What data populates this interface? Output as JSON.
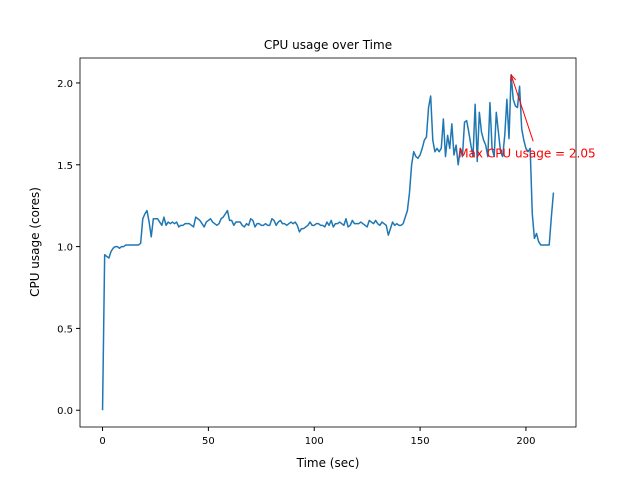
{
  "chart_data": {
    "type": "line",
    "title": "CPU usage over Time",
    "x_label": "Time (sec)",
    "y_label": "CPU usage (cores)",
    "x": [
      0,
      1,
      2,
      3,
      4,
      5,
      6,
      7,
      8,
      9,
      10,
      11,
      12,
      13,
      14,
      15,
      16,
      17,
      18,
      19,
      20,
      21,
      22,
      23,
      24,
      25,
      26,
      27,
      28,
      29,
      30,
      31,
      32,
      33,
      34,
      35,
      36,
      37,
      38,
      39,
      40,
      41,
      42,
      43,
      44,
      45,
      46,
      47,
      48,
      49,
      50,
      51,
      52,
      53,
      54,
      55,
      56,
      57,
      58,
      59,
      60,
      61,
      62,
      63,
      64,
      65,
      66,
      67,
      68,
      69,
      70,
      71,
      72,
      73,
      74,
      75,
      76,
      77,
      78,
      79,
      80,
      81,
      82,
      83,
      84,
      85,
      86,
      87,
      88,
      89,
      90,
      91,
      92,
      93,
      94,
      95,
      96,
      97,
      98,
      99,
      100,
      101,
      102,
      103,
      104,
      105,
      106,
      107,
      108,
      109,
      110,
      111,
      112,
      113,
      114,
      115,
      116,
      117,
      118,
      119,
      120,
      121,
      122,
      123,
      124,
      125,
      126,
      127,
      128,
      129,
      130,
      131,
      132,
      133,
      134,
      135,
      136,
      137,
      138,
      139,
      140,
      141,
      142,
      143,
      144,
      145,
      146,
      147,
      148,
      149,
      150,
      151,
      152,
      153,
      154,
      155,
      156,
      157,
      158,
      159,
      160,
      161,
      162,
      163,
      164,
      165,
      166,
      167,
      168,
      169,
      170,
      171,
      172,
      173,
      174,
      175,
      176,
      177,
      178,
      179,
      180,
      181,
      182,
      183,
      184,
      185,
      186,
      187,
      188,
      189,
      190,
      191,
      192,
      193,
      194,
      195,
      196,
      197,
      198,
      199,
      200,
      201,
      202,
      203,
      204,
      205,
      206,
      207,
      208,
      209,
      210,
      211,
      212,
      213
    ],
    "series": [
      {
        "name": "CPU usage",
        "color": "#1f77b4",
        "values": [
          0,
          0.95,
          0.94,
          0.93,
          0.97,
          0.99,
          1.0,
          1.0,
          0.99,
          1.0,
          1.0,
          1.01,
          1.01,
          1.01,
          1.01,
          1.01,
          1.01,
          1.01,
          1.02,
          1.17,
          1.2,
          1.22,
          1.15,
          1.06,
          1.17,
          1.17,
          1.17,
          1.15,
          1.13,
          1.18,
          1.13,
          1.15,
          1.14,
          1.15,
          1.14,
          1.15,
          1.12,
          1.13,
          1.13,
          1.14,
          1.14,
          1.14,
          1.13,
          1.12,
          1.18,
          1.17,
          1.16,
          1.14,
          1.12,
          1.15,
          1.16,
          1.17,
          1.15,
          1.14,
          1.13,
          1.14,
          1.17,
          1.18,
          1.2,
          1.22,
          1.16,
          1.16,
          1.13,
          1.15,
          1.15,
          1.15,
          1.13,
          1.12,
          1.14,
          1.13,
          1.17,
          1.16,
          1.12,
          1.14,
          1.14,
          1.13,
          1.13,
          1.14,
          1.13,
          1.13,
          1.17,
          1.16,
          1.13,
          1.15,
          1.16,
          1.14,
          1.14,
          1.13,
          1.14,
          1.15,
          1.14,
          1.15,
          1.13,
          1.09,
          1.11,
          1.11,
          1.12,
          1.13,
          1.15,
          1.13,
          1.13,
          1.14,
          1.14,
          1.13,
          1.13,
          1.12,
          1.15,
          1.13,
          1.16,
          1.12,
          1.14,
          1.14,
          1.15,
          1.14,
          1.13,
          1.17,
          1.12,
          1.13,
          1.16,
          1.14,
          1.14,
          1.14,
          1.15,
          1.14,
          1.13,
          1.12,
          1.16,
          1.15,
          1.14,
          1.16,
          1.14,
          1.13,
          1.15,
          1.14,
          1.13,
          1.07,
          1.11,
          1.15,
          1.13,
          1.14,
          1.13,
          1.13,
          1.14,
          1.18,
          1.22,
          1.33,
          1.5,
          1.58,
          1.55,
          1.54,
          1.56,
          1.6,
          1.65,
          1.67,
          1.85,
          1.92,
          1.65,
          1.58,
          1.6,
          1.58,
          1.6,
          1.78,
          1.55,
          1.68,
          1.6,
          1.75,
          1.56,
          1.62,
          1.5,
          1.6,
          1.55,
          1.76,
          1.77,
          1.7,
          1.62,
          1.55,
          1.87,
          1.52,
          1.82,
          1.7,
          1.65,
          1.62,
          1.55,
          1.88,
          1.6,
          1.55,
          1.82,
          1.7,
          1.58,
          1.55,
          1.68,
          1.9,
          1.66,
          2.05,
          1.9,
          1.86,
          1.85,
          1.98,
          1.72,
          1.65,
          1.6,
          1.58,
          1.6,
          1.2,
          1.05,
          1.08,
          1.03,
          1.01,
          1.01,
          1.01,
          1.01,
          1.01,
          1.18,
          1.33
        ]
      }
    ],
    "xlim": [
      -10.65,
      223.65
    ],
    "xticks": [
      0,
      50,
      100,
      150,
      200
    ],
    "ylim": [
      -0.1025,
      2.1525
    ],
    "yticks": [
      {
        "value": 0,
        "label": "0.0"
      },
      {
        "value": 0.5,
        "label": "0.5"
      },
      {
        "value": 1,
        "label": "1.0"
      },
      {
        "value": 1.5,
        "label": "1.5"
      },
      {
        "value": 2,
        "label": "2.0"
      }
    ],
    "annotation": {
      "text": "Max CPU usage = 2.05",
      "x": 193,
      "y": 2.05,
      "text_x": 168,
      "text_y": 1.57,
      "color": "red"
    }
  }
}
